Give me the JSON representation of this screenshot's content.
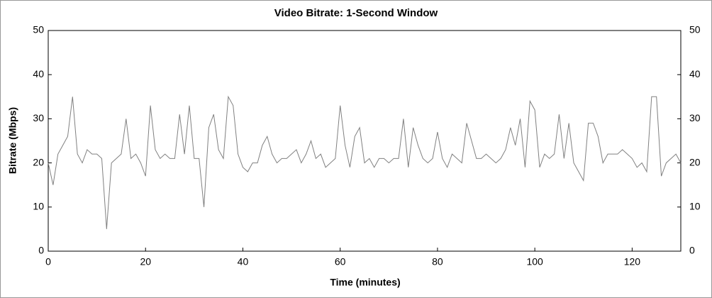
{
  "chart_data": {
    "type": "line",
    "title": "Video Bitrate: 1-Second Window",
    "xlabel": "Time (minutes)",
    "ylabel": "Bitrate (Mbps)",
    "x": [
      0,
      1,
      2,
      3,
      4,
      5,
      6,
      7,
      8,
      9,
      10,
      11,
      12,
      13,
      14,
      15,
      16,
      17,
      18,
      19,
      20,
      21,
      22,
      23,
      24,
      25,
      26,
      27,
      28,
      29,
      30,
      31,
      32,
      33,
      34,
      35,
      36,
      37,
      38,
      39,
      40,
      41,
      42,
      43,
      44,
      45,
      46,
      47,
      48,
      49,
      50,
      51,
      52,
      53,
      54,
      55,
      56,
      57,
      58,
      59,
      60,
      61,
      62,
      63,
      64,
      65,
      66,
      67,
      68,
      69,
      70,
      71,
      72,
      73,
      74,
      75,
      76,
      77,
      78,
      79,
      80,
      81,
      82,
      83,
      84,
      85,
      86,
      87,
      88,
      89,
      90,
      91,
      92,
      93,
      94,
      95,
      96,
      97,
      98,
      99,
      100,
      101,
      102,
      103,
      104,
      105,
      106,
      107,
      108,
      109,
      110,
      111,
      112,
      113,
      114,
      115,
      116,
      117,
      118,
      119,
      120,
      121,
      122,
      123,
      124,
      125,
      126,
      127,
      128,
      129,
      130
    ],
    "series": [
      {
        "name": "Video Bitrate",
        "color": "#808080",
        "values": [
          20,
          15,
          22,
          24,
          26,
          35,
          22,
          20,
          23,
          22,
          22,
          21,
          5,
          20,
          21,
          22,
          30,
          21,
          22,
          20,
          17,
          33,
          23,
          21,
          22,
          21,
          21,
          31,
          22,
          33,
          21,
          21,
          10,
          28,
          31,
          23,
          21,
          35,
          33,
          22,
          19,
          18,
          20,
          20,
          24,
          26,
          22,
          20,
          21,
          21,
          22,
          23,
          20,
          22,
          25,
          21,
          22,
          19,
          20,
          21,
          33,
          24,
          19,
          26,
          28,
          20,
          21,
          19,
          21,
          21,
          20,
          21,
          21,
          30,
          19,
          28,
          24,
          21,
          20,
          21,
          27,
          21,
          19,
          22,
          21,
          20,
          29,
          25,
          21,
          21,
          22,
          21,
          20,
          21,
          23,
          28,
          24,
          30,
          19,
          34,
          32,
          19,
          22,
          21,
          22,
          31,
          21,
          29,
          20,
          18,
          16,
          29,
          29,
          26,
          20,
          22,
          22,
          22,
          23,
          22,
          21,
          19,
          20,
          18,
          35,
          35,
          17,
          20,
          21,
          22,
          20
        ]
      }
    ],
    "xlim": [
      0,
      130
    ],
    "xticks": [
      0,
      20,
      40,
      60,
      80,
      100,
      120
    ],
    "ylim": [
      0,
      50
    ],
    "yticks": [
      0,
      10,
      20,
      30,
      40,
      50
    ],
    "y2lim": [
      0,
      50
    ],
    "y2ticks": [
      0,
      10,
      20,
      30,
      40,
      50
    ],
    "grid": false
  }
}
